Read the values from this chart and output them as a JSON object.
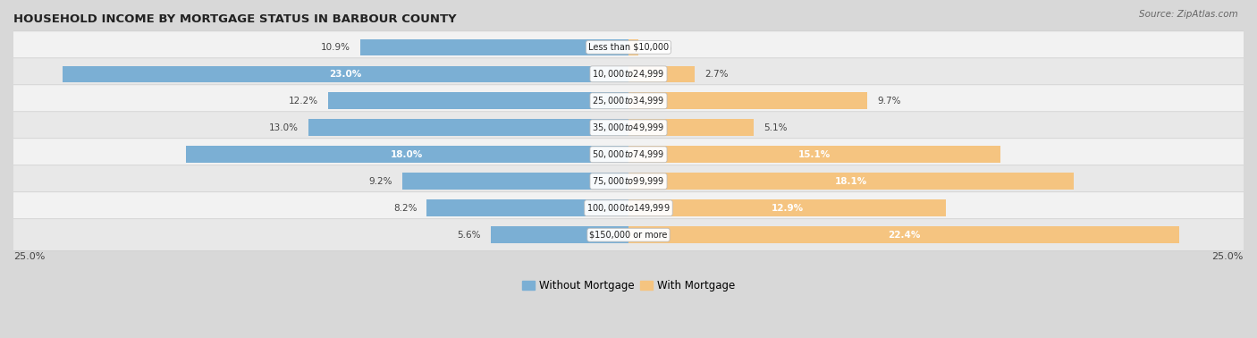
{
  "title": "Household Income by Mortgage Status in Barbour County",
  "title_display": "HOUSEHOLD INCOME BY MORTGAGE STATUS IN BARBOUR COUNTY",
  "source": "Source: ZipAtlas.com",
  "categories": [
    "Less than $10,000",
    "$10,000 to $24,999",
    "$25,000 to $34,999",
    "$35,000 to $49,999",
    "$50,000 to $74,999",
    "$75,000 to $99,999",
    "$100,000 to $149,999",
    "$150,000 or more"
  ],
  "without_mortgage": [
    10.9,
    23.0,
    12.2,
    13.0,
    18.0,
    9.2,
    8.2,
    5.6
  ],
  "with_mortgage": [
    0.4,
    2.7,
    9.7,
    5.1,
    15.1,
    18.1,
    12.9,
    22.4
  ],
  "color_without": "#7bafd4",
  "color_with": "#f5c480",
  "axis_limit": 25.0,
  "row_colors": [
    "#f2f2f2",
    "#e8e8e8"
  ],
  "bg_color": "#d8d8d8",
  "wom_label_inside_threshold": 15,
  "wm_label_inside_threshold": 12
}
